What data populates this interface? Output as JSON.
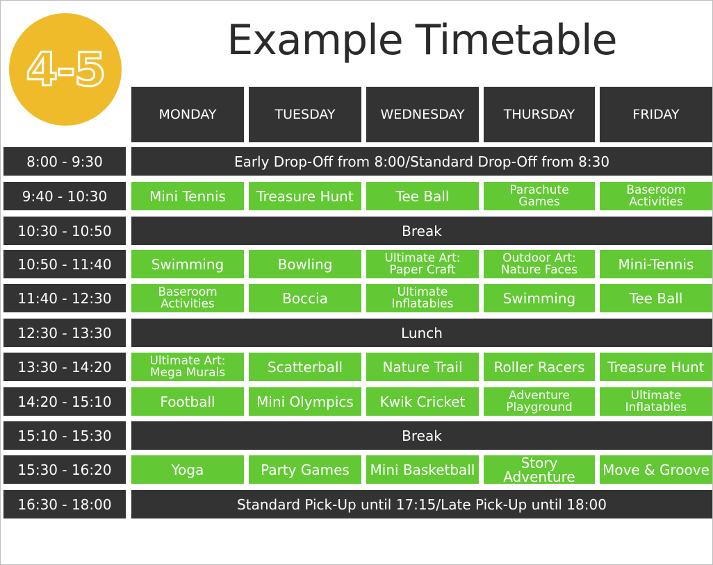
{
  "badge": {
    "text": "4-5",
    "color": "#f0bb2a"
  },
  "title": "Example Timetable",
  "colors": {
    "dark": "#333333",
    "activity": "#62c934"
  },
  "days": [
    "MONDAY",
    "TUESDAY",
    "WEDNESDAY",
    "THURSDAY",
    "FRIDAY"
  ],
  "rows": [
    {
      "time": "8:00 - 9:30",
      "span": "Early Drop-Off from 8:00/Standard Drop-Off from 8:30"
    },
    {
      "time": "9:40 - 10:30",
      "activities": [
        "Mini Tennis",
        "Treasure Hunt",
        "Tee Ball",
        "Parachute\nGames",
        "Baseroom\nActivities"
      ]
    },
    {
      "time": "10:30 - 10:50",
      "span": "Break"
    },
    {
      "time": "10:50 - 11:40",
      "activities": [
        "Swimming",
        "Bowling",
        "Ultimate Art:\nPaper Craft",
        "Outdoor Art:\nNature Faces",
        "Mini-Tennis"
      ]
    },
    {
      "time": "11:40 - 12:30",
      "activities": [
        "Baseroom\nActivities",
        "Boccia",
        "Ultimate\nInflatables",
        "Swimming",
        "Tee Ball"
      ]
    },
    {
      "time": "12:30 - 13:30",
      "span": "Lunch"
    },
    {
      "time": "13:30 - 14:20",
      "activities": [
        "Ultimate Art:\nMega Murals",
        "Scatterball",
        "Nature Trail",
        "Roller Racers",
        "Treasure Hunt"
      ]
    },
    {
      "time": "14:20 - 15:10",
      "activities": [
        "Football",
        "Mini Olympics",
        "Kwik Cricket",
        "Adventure\nPlayground",
        "Ultimate\nInflatables"
      ]
    },
    {
      "time": "15:10 - 15:30",
      "span": "Break"
    },
    {
      "time": "15:30 - 16:20",
      "activities": [
        "Yoga",
        "Party Games",
        "Mini Basketball",
        "Story Adventure",
        "Move & Groove"
      ]
    },
    {
      "time": "16:30 - 18:00",
      "span": "Standard Pick-Up until 17:15/Late Pick-Up until 18:00"
    }
  ]
}
